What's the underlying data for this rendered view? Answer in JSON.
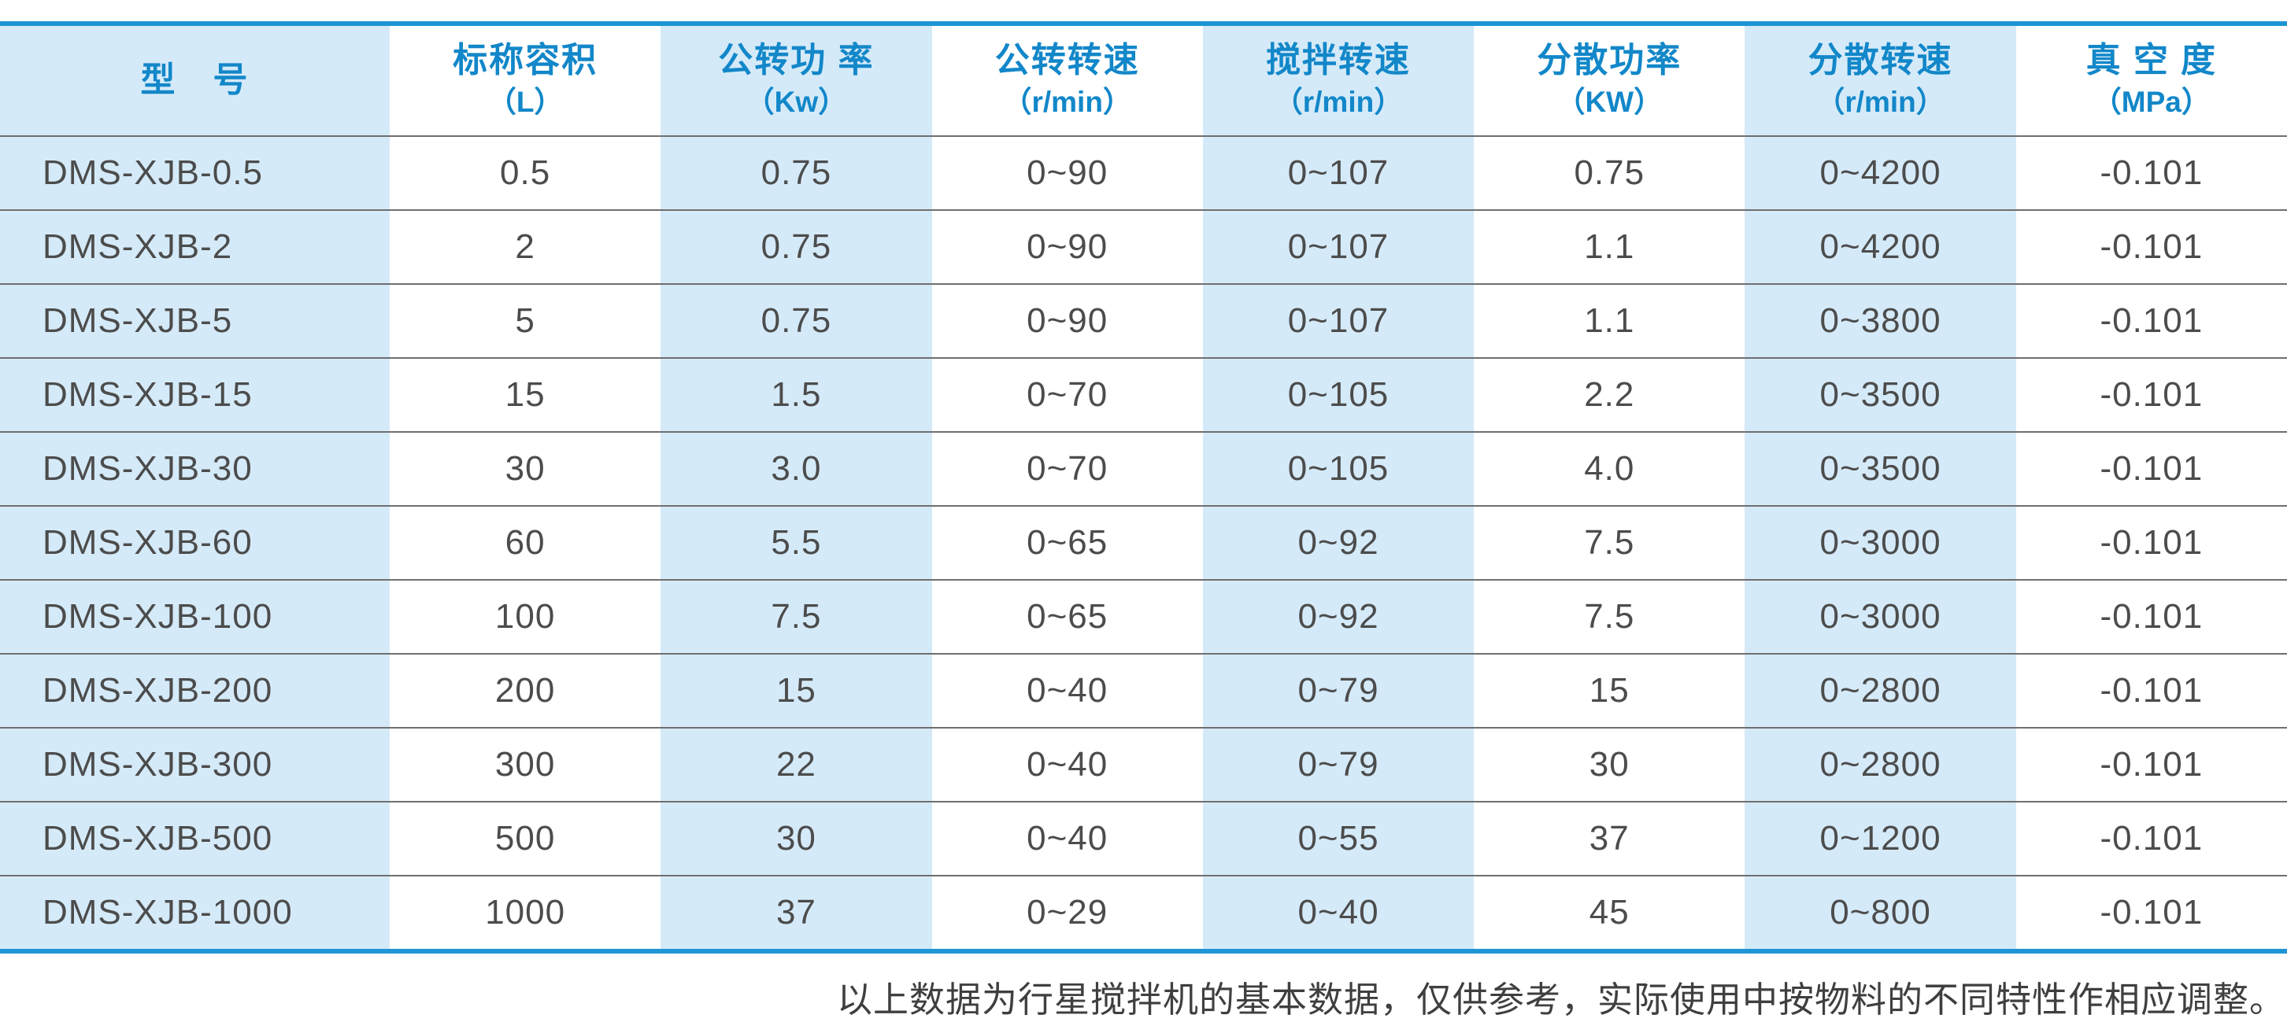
{
  "table": {
    "columns": [
      {
        "title": "型　号",
        "unit": ""
      },
      {
        "title": "标称容积",
        "unit": "（L）"
      },
      {
        "title": "公转功 率",
        "unit": "（Kw）"
      },
      {
        "title": "公转转速",
        "unit": "（r/min）"
      },
      {
        "title": "搅拌转速",
        "unit": "（r/min）"
      },
      {
        "title": "分散功率",
        "unit": "（KW）"
      },
      {
        "title": "分散转速",
        "unit": "（r/min）"
      },
      {
        "title": "真 空 度",
        "unit": "（MPa）"
      }
    ],
    "rows": [
      [
        "DMS-XJB-0.5",
        "0.5",
        "0.75",
        "0~90",
        "0~107",
        "0.75",
        "0~4200",
        "-0.101"
      ],
      [
        "DMS-XJB-2",
        "2",
        "0.75",
        "0~90",
        "0~107",
        "1.1",
        "0~4200",
        "-0.101"
      ],
      [
        "DMS-XJB-5",
        "5",
        "0.75",
        "0~90",
        "0~107",
        "1.1",
        "0~3800",
        "-0.101"
      ],
      [
        "DMS-XJB-15",
        "15",
        "1.5",
        "0~70",
        "0~105",
        "2.2",
        "0~3500",
        "-0.101"
      ],
      [
        "DMS-XJB-30",
        "30",
        "3.0",
        "0~70",
        "0~105",
        "4.0",
        "0~3500",
        "-0.101"
      ],
      [
        "DMS-XJB-60",
        "60",
        "5.5",
        "0~65",
        "0~92",
        "7.5",
        "0~3000",
        "-0.101"
      ],
      [
        "DMS-XJB-100",
        "100",
        "7.5",
        "0~65",
        "0~92",
        "7.5",
        "0~3000",
        "-0.101"
      ],
      [
        "DMS-XJB-200",
        "200",
        "15",
        "0~40",
        "0~79",
        "15",
        "0~2800",
        "-0.101"
      ],
      [
        "DMS-XJB-300",
        "300",
        "22",
        "0~40",
        "0~79",
        "30",
        "0~2800",
        "-0.101"
      ],
      [
        "DMS-XJB-500",
        "500",
        "30",
        "0~40",
        "0~55",
        "37",
        "0~1200",
        "-0.101"
      ],
      [
        "DMS-XJB-1000",
        "1000",
        "37",
        "0~29",
        "0~40",
        "45",
        "0~800",
        "-0.101"
      ]
    ]
  },
  "footnote": "以上数据为行星搅拌机的基本数据，仅供参考，实际使用中按物料的不同特性作相应调整。",
  "colors": {
    "accent_blue": "#1e96d5",
    "header_text_blue": "#1287c9",
    "cell_light_blue": "#d5eaf8",
    "data_text": "#4c4c4c",
    "row_line": "#6f6f6f"
  }
}
